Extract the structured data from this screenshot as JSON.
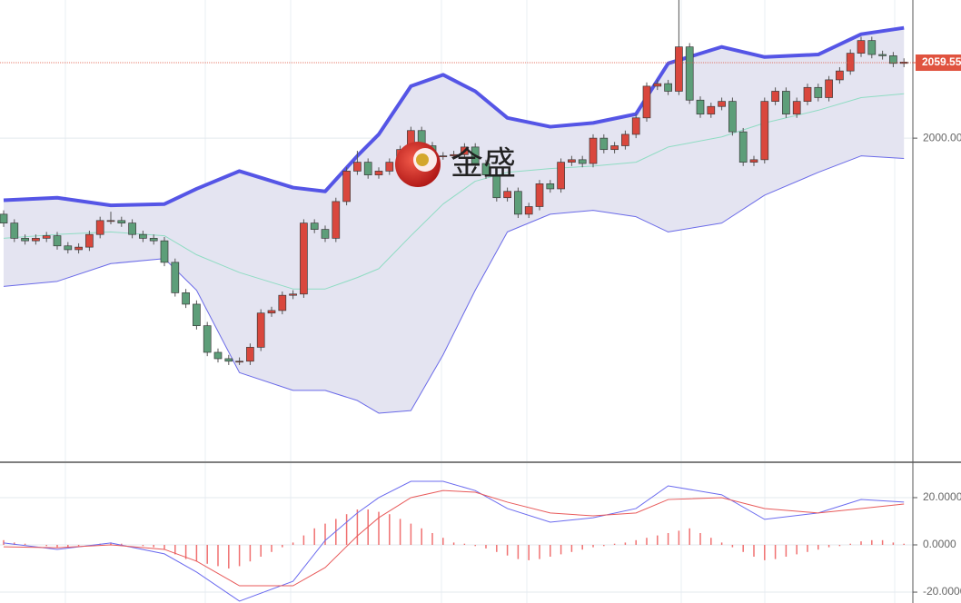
{
  "chart_data": [
    {
      "type": "candlestick",
      "open": [
        1940,
        1933,
        1921,
        1919,
        1921,
        1923,
        1915,
        1912,
        1914,
        1924,
        1935,
        1935,
        1933,
        1924,
        1921,
        1919,
        1902,
        1878,
        1869,
        1852,
        1831,
        1826,
        1824,
        1824,
        1835,
        1862,
        1864,
        1876,
        1877,
        1933,
        1928,
        1921,
        1950,
        1974,
        1981,
        1971,
        1974,
        1981,
        1991,
        2006,
        1994,
        1986,
        1986,
        1987,
        1993,
        1980,
        1971,
        1953,
        1958,
        1940,
        1946,
        1964,
        1960,
        1981,
        1983,
        1980,
        2000,
        1991,
        1994,
        2003,
        2016,
        2041,
        2043,
        2037,
        2072,
        2030,
        2019,
        2025,
        2029,
        2005,
        1981,
        1983,
        2029,
        2037,
        2019,
        2029,
        2040,
        2032,
        2046,
        2053,
        2067,
        2077,
        2066,
        2065,
        2059
      ],
      "high": [
        1943,
        1936,
        1924,
        1924,
        1926,
        1926,
        1918,
        1917,
        1927,
        1938,
        1942,
        1938,
        1936,
        1927,
        1924,
        1922,
        1905,
        1881,
        1872,
        1855,
        1834,
        1829,
        1827,
        1838,
        1865,
        1867,
        1879,
        1880,
        1936,
        1936,
        1931,
        1953,
        1977,
        1990,
        1984,
        1977,
        1984,
        1994,
        2009,
        2009,
        1997,
        1989,
        1990,
        1996,
        1996,
        1983,
        1974,
        1961,
        1961,
        1949,
        1967,
        1967,
        1984,
        1986,
        1986,
        2003,
        2003,
        1997,
        2006,
        2019,
        2044,
        2046,
        2046,
        2120,
        2075,
        2033,
        2028,
        2032,
        2032,
        2008,
        1986,
        2032,
        2040,
        2040,
        2032,
        2043,
        2043,
        2049,
        2056,
        2070,
        2080,
        2080,
        2069,
        2068,
        2063
      ],
      "low": [
        1930,
        1918,
        1916,
        1916,
        1918,
        1912,
        1909,
        1909,
        1911,
        1921,
        1932,
        1930,
        1921,
        1918,
        1916,
        1899,
        1875,
        1866,
        1849,
        1828,
        1823,
        1821,
        1821,
        1821,
        1832,
        1859,
        1861,
        1873,
        1874,
        1925,
        1918,
        1918,
        1947,
        1971,
        1968,
        1968,
        1971,
        1978,
        1988,
        1991,
        1983,
        1983,
        1983,
        1984,
        1977,
        1968,
        1950,
        1950,
        1937,
        1937,
        1943,
        1957,
        1957,
        1978,
        1977,
        1977,
        1988,
        1988,
        1991,
        2000,
        2013,
        2038,
        2034,
        2034,
        2027,
        2016,
        2016,
        2022,
        2002,
        1978,
        1978,
        1980,
        2026,
        2016,
        2016,
        2026,
        2029,
        2029,
        2043,
        2050,
        2064,
        2063,
        2062,
        2056,
        2056
      ],
      "close": [
        1933,
        1921,
        1919,
        1921,
        1923,
        1915,
        1912,
        1914,
        1924,
        1935,
        1935,
        1933,
        1924,
        1921,
        1919,
        1902,
        1878,
        1869,
        1852,
        1831,
        1826,
        1824,
        1824,
        1835,
        1862,
        1864,
        1876,
        1877,
        1933,
        1928,
        1921,
        1950,
        1974,
        1981,
        1971,
        1974,
        1981,
        1991,
        2006,
        1994,
        1986,
        1986,
        1987,
        1993,
        1980,
        1971,
        1953,
        1958,
        1940,
        1946,
        1964,
        1960,
        1981,
        1983,
        1980,
        2000,
        1991,
        1994,
        2003,
        2016,
        2041,
        2043,
        2037,
        2072,
        2030,
        2019,
        2025,
        2029,
        2005,
        1981,
        1983,
        2029,
        2037,
        2019,
        2029,
        2040,
        2032,
        2046,
        2053,
        2067,
        2077,
        2066,
        2065,
        2059,
        2060
      ],
      "up_color": "#d9473d",
      "down_color": "#5d9e79",
      "bands": {
        "x": [
          0,
          5,
          10,
          15,
          18,
          22,
          27,
          30,
          33,
          35,
          38,
          41,
          44,
          47,
          51,
          55,
          59,
          62,
          67,
          71,
          76,
          80,
          84
        ],
        "upper": [
          1951,
          1953,
          1947,
          1948,
          1960,
          1974,
          1961,
          1958,
          1986,
          2003,
          2041,
          2050,
          2037,
          2016,
          2009,
          2012,
          2019,
          2059,
          2072,
          2064,
          2066,
          2082,
          2087
        ],
        "middle": [
          1921,
          1924,
          1926,
          1923,
          1908,
          1894,
          1881,
          1881,
          1890,
          1897,
          1923,
          1948,
          1966,
          1973,
          1976,
          1978,
          1981,
          1993,
          2001,
          2012,
          2022,
          2032,
          2035
        ],
        "lower": [
          1883,
          1887,
          1901,
          1905,
          1880,
          1815,
          1801,
          1801,
          1793,
          1783,
          1785,
          1829,
          1880,
          1926,
          1940,
          1943,
          1938,
          1926,
          1933,
          1955,
          1973,
          1986,
          1984
        ],
        "upper_color": "#5555e6",
        "middle_color": "#8fdcc3",
        "lower_color": "#6a6ae8",
        "fill": "#e4e4f1"
      },
      "ylim": [
        1745,
        2109
      ],
      "yticks": [
        {
          "value": 2000,
          "label": "2000.00"
        }
      ],
      "last_price": {
        "value": 2059.55,
        "label": "2059.55"
      },
      "last_price_color": "#e0533f",
      "watermark": "金盛",
      "grid": true
    },
    {
      "type": "macd",
      "x": [
        0,
        5,
        10,
        15,
        18,
        22,
        27,
        30,
        33,
        35,
        38,
        41,
        44,
        47,
        51,
        55,
        59,
        62,
        67,
        71,
        76,
        80,
        84
      ],
      "series": [
        {
          "color": "#6b6bef",
          "values": [
            0.8,
            -1.9,
            0.8,
            -3.8,
            -11.5,
            -23.8,
            -15.4,
            1.9,
            13.5,
            20,
            26.9,
            26.9,
            23,
            15.4,
            9.6,
            11.5,
            15.4,
            25,
            21.2,
            10.8,
            13.5,
            19.2,
            18.1
          ]
        },
        {
          "color": "#e85a5a",
          "values": [
            -0.8,
            -1.2,
            0,
            -1.9,
            -6.9,
            -17.3,
            -17.3,
            -9.6,
            3.8,
            11.5,
            20,
            23,
            22.3,
            18.1,
            13.5,
            12.3,
            13.5,
            19.2,
            20,
            15.4,
            13.5,
            15.4,
            17.3
          ]
        }
      ],
      "histogram": [
        2,
        1,
        0.5,
        0,
        -0.5,
        -1,
        -1,
        -0.5,
        0,
        0.5,
        1,
        0.5,
        0,
        -0.5,
        -1,
        -2,
        -4,
        -6,
        -7,
        -8,
        -9,
        -10,
        -9,
        -7,
        -5,
        -3,
        -1,
        1,
        4,
        7,
        9,
        11,
        13,
        15,
        15,
        14,
        13,
        11,
        9,
        7,
        5,
        3,
        1,
        0.5,
        -0.5,
        -1.5,
        -3,
        -4.5,
        -6,
        -6.5,
        -6,
        -5,
        -4,
        -3,
        -2,
        -1,
        -0.5,
        0.5,
        1,
        2,
        3,
        4,
        5,
        6,
        7,
        5,
        3,
        1,
        -1,
        -3,
        -5,
        -6.5,
        -6,
        -5,
        -4,
        -3,
        -2,
        -1,
        -0.5,
        0.5,
        1.5,
        2,
        2,
        1,
        0.5
      ],
      "histogram_color": "#f07070",
      "ylim": [
        -24.6,
        34.6
      ],
      "yticks": [
        {
          "value": 20,
          "label": "20.0000"
        },
        {
          "value": 0,
          "label": "0.0000"
        },
        {
          "value": -20,
          "label": "-20.0000"
        }
      ],
      "grid": true
    }
  ]
}
